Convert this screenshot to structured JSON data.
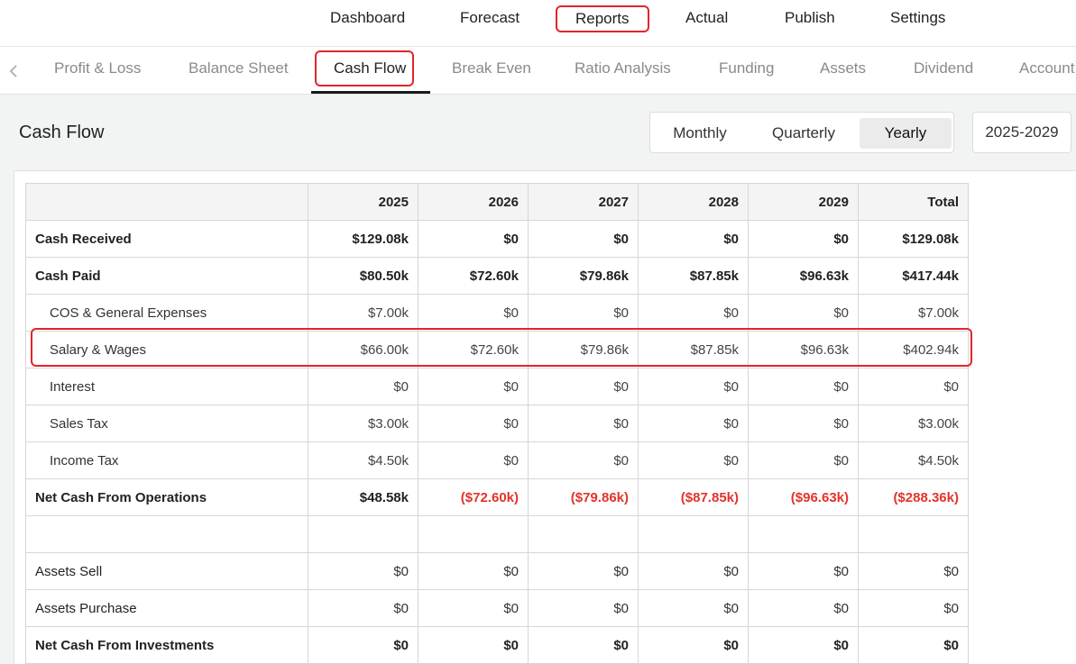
{
  "topnav": {
    "items": [
      "Dashboard",
      "Forecast",
      "Reports",
      "Actual",
      "Publish",
      "Settings"
    ],
    "active": "Reports"
  },
  "subnav": {
    "tabs": [
      "Profit & Loss",
      "Balance Sheet",
      "Cash Flow",
      "Break Even",
      "Ratio Analysis",
      "Funding",
      "Assets",
      "Dividend",
      "Account"
    ],
    "active": "Cash Flow"
  },
  "page": {
    "title": "Cash Flow",
    "periods": [
      "Monthly",
      "Quarterly",
      "Yearly"
    ],
    "selected_period": "Yearly",
    "year_range": "2025-2029"
  },
  "table": {
    "headers": [
      "",
      "2025",
      "2026",
      "2027",
      "2028",
      "2029",
      "Total"
    ],
    "rows": [
      {
        "label": "Cash Received",
        "values": [
          "$129.08k",
          "$0",
          "$0",
          "$0",
          "$0",
          "$129.08k"
        ]
      },
      {
        "label": "Cash Paid",
        "values": [
          "$80.50k",
          "$72.60k",
          "$79.86k",
          "$87.85k",
          "$96.63k",
          "$417.44k"
        ]
      },
      {
        "label": "COS & General Expenses",
        "values": [
          "$7.00k",
          "$0",
          "$0",
          "$0",
          "$0",
          "$7.00k"
        ]
      },
      {
        "label": "Salary & Wages",
        "values": [
          "$66.00k",
          "$72.60k",
          "$79.86k",
          "$87.85k",
          "$96.63k",
          "$402.94k"
        ]
      },
      {
        "label": "Interest",
        "values": [
          "$0",
          "$0",
          "$0",
          "$0",
          "$0",
          "$0"
        ]
      },
      {
        "label": "Sales Tax",
        "values": [
          "$3.00k",
          "$0",
          "$0",
          "$0",
          "$0",
          "$3.00k"
        ]
      },
      {
        "label": "Income Tax",
        "values": [
          "$4.50k",
          "$0",
          "$0",
          "$0",
          "$0",
          "$4.50k"
        ]
      },
      {
        "label": "Net Cash From Operations",
        "values": [
          "$48.58k",
          "($72.60k)",
          "($79.86k)",
          "($87.85k)",
          "($96.63k)",
          "($288.36k)"
        ]
      },
      {
        "label": "",
        "values": [
          "",
          "",
          "",
          "",
          "",
          ""
        ]
      },
      {
        "label": "Assets Sell",
        "values": [
          "$0",
          "$0",
          "$0",
          "$0",
          "$0",
          "$0"
        ]
      },
      {
        "label": "Assets Purchase",
        "values": [
          "$0",
          "$0",
          "$0",
          "$0",
          "$0",
          "$0"
        ]
      },
      {
        "label": "Net Cash From Investments",
        "values": [
          "$0",
          "$0",
          "$0",
          "$0",
          "$0",
          "$0"
        ]
      }
    ]
  },
  "colors": {
    "accent_red": "#e3242b",
    "negative": "#e2332b"
  }
}
